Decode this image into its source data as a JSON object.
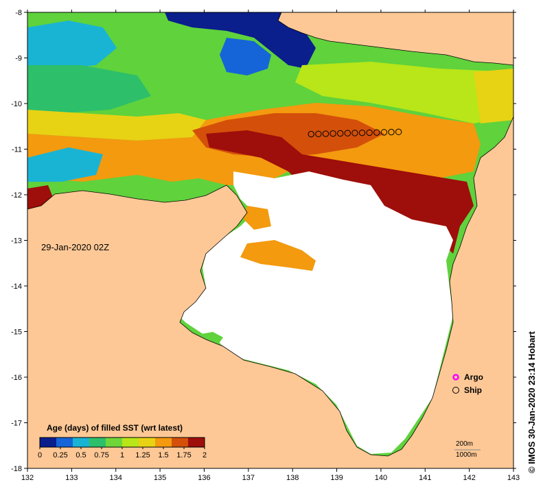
{
  "map": {
    "timestamp": "29-Jan-2020 02Z",
    "credit": "© IMOS 30-Jan-2020 23:14 Hobart",
    "x_axis": {
      "range": [
        132,
        143
      ],
      "ticks": [
        "132",
        "133",
        "134",
        "135",
        "136",
        "137",
        "138",
        "139",
        "140",
        "141",
        "142",
        "143"
      ]
    },
    "y_axis": {
      "range": [
        -18,
        -8
      ],
      "ticks": [
        "-8",
        "-9",
        "-10",
        "-11",
        "-12",
        "-13",
        "-14",
        "-15",
        "-16",
        "-17",
        "-18"
      ]
    },
    "colorbar": {
      "title": "Age (days) of filled SST (wrt latest)",
      "labels": [
        "0",
        "0.25",
        "0.5",
        "0.75",
        "1",
        "1.25",
        "1.5",
        "1.75",
        "2"
      ],
      "colors": [
        "#0a1e8c",
        "#1565d8",
        "#19b4d4",
        "#2dbf6a",
        "#6fd63a",
        "#b8e619",
        "#e8d214",
        "#f39a0f",
        "#d4500a",
        "#9e0e0a"
      ]
    },
    "legend": [
      {
        "label": "Argo",
        "color": "#ff00ff"
      },
      {
        "label": "Ship",
        "color": "#000000"
      }
    ],
    "scale_labels": [
      "200m",
      "1000m"
    ],
    "colors": {
      "land": "#fdc896",
      "cloud": "#ffffff"
    }
  }
}
